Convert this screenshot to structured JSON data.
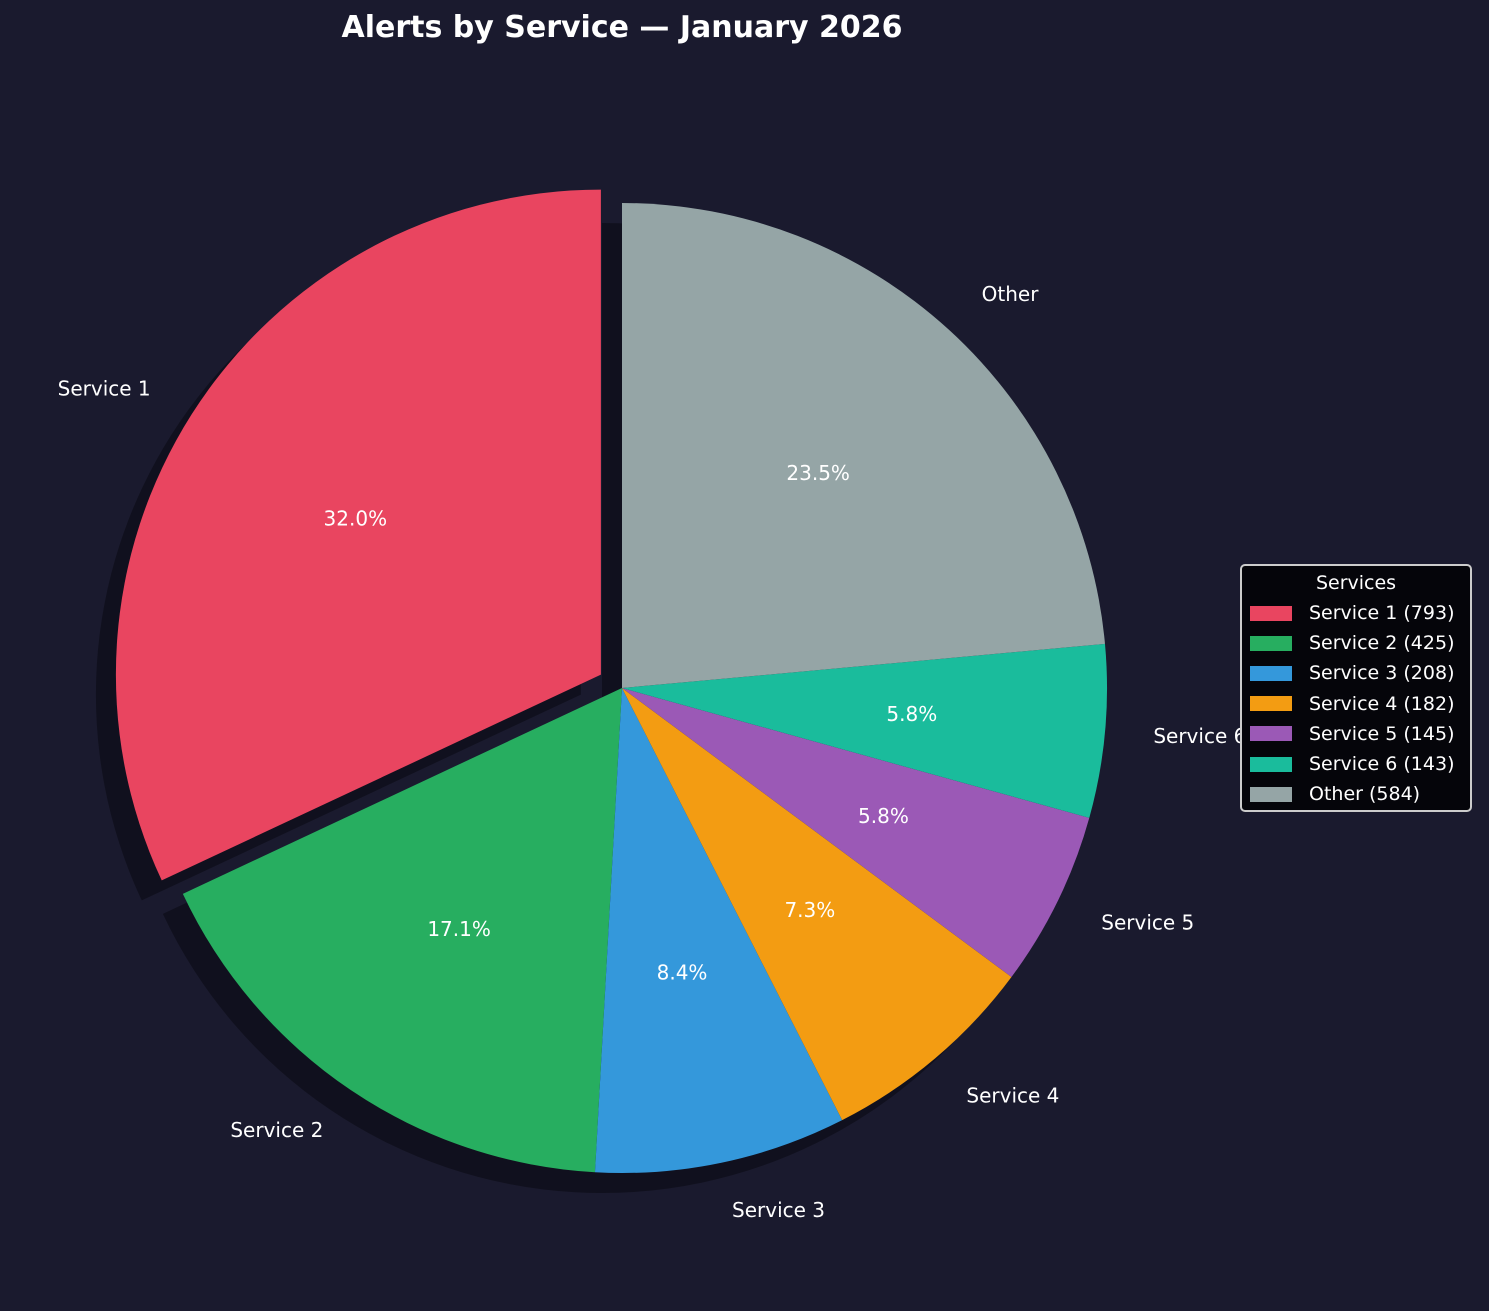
{
  "chart_data": {
    "type": "pie",
    "title": "Alerts by Service — January 2026",
    "categories": [
      "Service 1",
      "Service 2",
      "Service 3",
      "Service 4",
      "Service 5",
      "Service 6",
      "Other"
    ],
    "values": [
      793,
      425,
      208,
      182,
      145,
      143,
      584
    ],
    "percent_labels": [
      "32.0%",
      "17.1%",
      "8.4%",
      "7.3%",
      "5.8%",
      "5.8%",
      "23.5%"
    ],
    "colors": [
      "#e94560",
      "#27ae60",
      "#3498db",
      "#f39c12",
      "#9b59b6",
      "#1abc9c",
      "#95a5a6"
    ],
    "exploded": [
      "Service 1"
    ],
    "start_angle_deg": 90,
    "direction": "counterclockwise",
    "legend": {
      "title": "Services",
      "placement": "right",
      "entries": [
        "Service 1 (793)",
        "Service 2 (425)",
        "Service 3 (208)",
        "Service 4 (182)",
        "Service 5 (145)",
        "Service 6 (143)",
        "Other (584)"
      ]
    }
  }
}
